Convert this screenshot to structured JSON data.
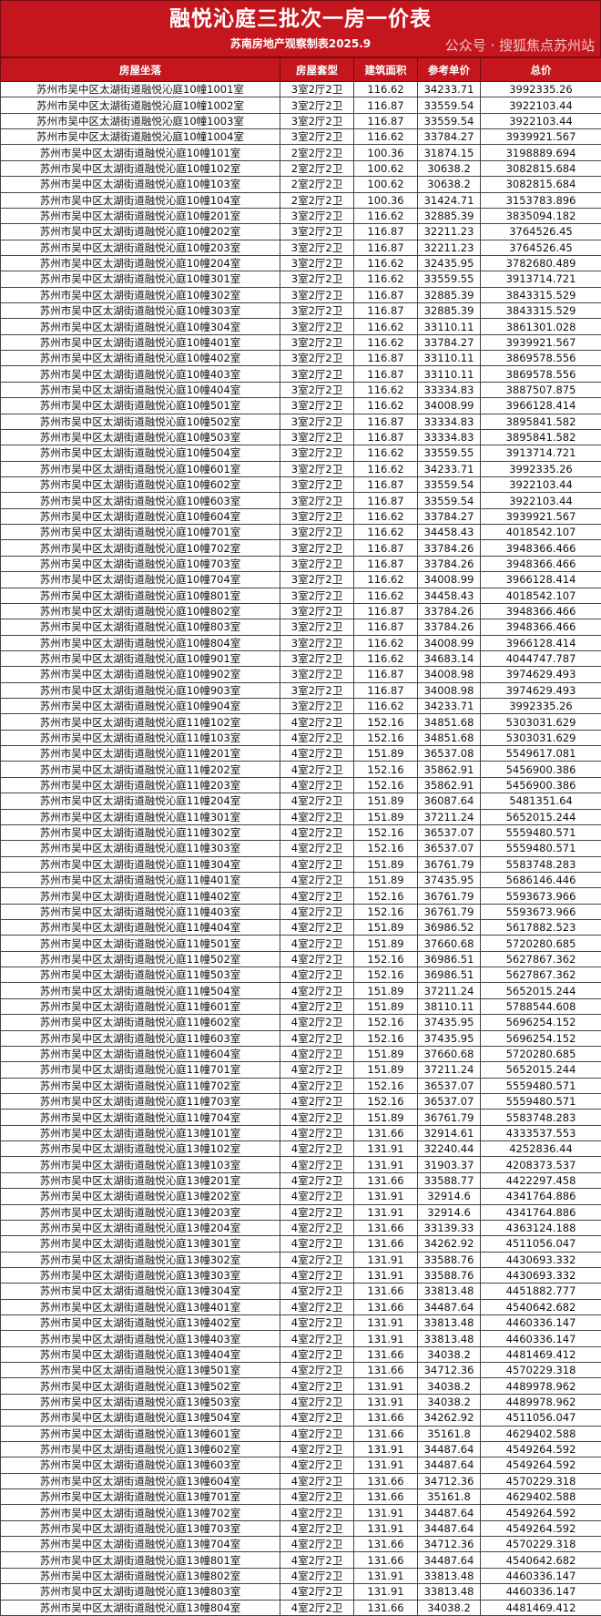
{
  "header": {
    "title": "融悦沁庭三批次一房一价表",
    "subtitle": "苏南房地产观察制表2025.9"
  },
  "colors": {
    "header_red": "#c5161d",
    "header_text": "#ffffff"
  },
  "table": {
    "columns": [
      "房屋坐落",
      "房屋套型",
      "建筑面积",
      "参考单价",
      "总价"
    ],
    "rows": [
      [
        "苏州市吴中区太湖街道融悦沁庭10幢1001室",
        "3室2厅2卫",
        "116.62",
        "34233.71",
        "3992335.26"
      ],
      [
        "苏州市吴中区太湖街道融悦沁庭10幢1002室",
        "3室2厅2卫",
        "116.87",
        "33559.54",
        "3922103.44"
      ],
      [
        "苏州市吴中区太湖街道融悦沁庭10幢1003室",
        "3室2厅2卫",
        "116.87",
        "33559.54",
        "3922103.44"
      ],
      [
        "苏州市吴中区太湖街道融悦沁庭10幢1004室",
        "3室2厅2卫",
        "116.62",
        "33784.27",
        "3939921.567"
      ],
      [
        "苏州市吴中区太湖街道融悦沁庭10幢101室",
        "2室2厅2卫",
        "100.36",
        "31874.15",
        "3198889.694"
      ],
      [
        "苏州市吴中区太湖街道融悦沁庭10幢102室",
        "2室2厅2卫",
        "100.62",
        "30638.2",
        "3082815.684"
      ],
      [
        "苏州市吴中区太湖街道融悦沁庭10幢103室",
        "2室2厅2卫",
        "100.62",
        "30638.2",
        "3082815.684"
      ],
      [
        "苏州市吴中区太湖街道融悦沁庭10幢104室",
        "2室2厅2卫",
        "100.36",
        "31424.71",
        "3153783.896"
      ],
      [
        "苏州市吴中区太湖街道融悦沁庭10幢201室",
        "3室2厅2卫",
        "116.62",
        "32885.39",
        "3835094.182"
      ],
      [
        "苏州市吴中区太湖街道融悦沁庭10幢202室",
        "3室2厅2卫",
        "116.87",
        "32211.23",
        "3764526.45"
      ],
      [
        "苏州市吴中区太湖街道融悦沁庭10幢203室",
        "3室2厅2卫",
        "116.87",
        "32211.23",
        "3764526.45"
      ],
      [
        "苏州市吴中区太湖街道融悦沁庭10幢204室",
        "3室2厅2卫",
        "116.62",
        "32435.95",
        "3782680.489"
      ],
      [
        "苏州市吴中区太湖街道融悦沁庭10幢301室",
        "3室2厅2卫",
        "116.62",
        "33559.55",
        "3913714.721"
      ],
      [
        "苏州市吴中区太湖街道融悦沁庭10幢302室",
        "3室2厅2卫",
        "116.87",
        "32885.39",
        "3843315.529"
      ],
      [
        "苏州市吴中区太湖街道融悦沁庭10幢303室",
        "3室2厅2卫",
        "116.87",
        "32885.39",
        "3843315.529"
      ],
      [
        "苏州市吴中区太湖街道融悦沁庭10幢304室",
        "3室2厅2卫",
        "116.62",
        "33110.11",
        "3861301.028"
      ],
      [
        "苏州市吴中区太湖街道融悦沁庭10幢401室",
        "3室2厅2卫",
        "116.62",
        "33784.27",
        "3939921.567"
      ],
      [
        "苏州市吴中区太湖街道融悦沁庭10幢402室",
        "3室2厅2卫",
        "116.87",
        "33110.11",
        "3869578.556"
      ],
      [
        "苏州市吴中区太湖街道融悦沁庭10幢403室",
        "3室2厅2卫",
        "116.87",
        "33110.11",
        "3869578.556"
      ],
      [
        "苏州市吴中区太湖街道融悦沁庭10幢404室",
        "3室2厅2卫",
        "116.62",
        "33334.83",
        "3887507.875"
      ],
      [
        "苏州市吴中区太湖街道融悦沁庭10幢501室",
        "3室2厅2卫",
        "116.62",
        "34008.99",
        "3966128.414"
      ],
      [
        "苏州市吴中区太湖街道融悦沁庭10幢502室",
        "3室2厅2卫",
        "116.87",
        "33334.83",
        "3895841.582"
      ],
      [
        "苏州市吴中区太湖街道融悦沁庭10幢503室",
        "3室2厅2卫",
        "116.87",
        "33334.83",
        "3895841.582"
      ],
      [
        "苏州市吴中区太湖街道融悦沁庭10幢504室",
        "3室2厅2卫",
        "116.62",
        "33559.55",
        "3913714.721"
      ],
      [
        "苏州市吴中区太湖街道融悦沁庭10幢601室",
        "3室2厅2卫",
        "116.62",
        "34233.71",
        "3992335.26"
      ],
      [
        "苏州市吴中区太湖街道融悦沁庭10幢602室",
        "3室2厅2卫",
        "116.87",
        "33559.54",
        "3922103.44"
      ],
      [
        "苏州市吴中区太湖街道融悦沁庭10幢603室",
        "3室2厅2卫",
        "116.87",
        "33559.54",
        "3922103.44"
      ],
      [
        "苏州市吴中区太湖街道融悦沁庭10幢604室",
        "3室2厅2卫",
        "116.62",
        "33784.27",
        "3939921.567"
      ],
      [
        "苏州市吴中区太湖街道融悦沁庭10幢701室",
        "3室2厅2卫",
        "116.62",
        "34458.43",
        "4018542.107"
      ],
      [
        "苏州市吴中区太湖街道融悦沁庭10幢702室",
        "3室2厅2卫",
        "116.87",
        "33784.26",
        "3948366.466"
      ],
      [
        "苏州市吴中区太湖街道融悦沁庭10幢703室",
        "3室2厅2卫",
        "116.87",
        "33784.26",
        "3948366.466"
      ],
      [
        "苏州市吴中区太湖街道融悦沁庭10幢704室",
        "3室2厅2卫",
        "116.62",
        "34008.99",
        "3966128.414"
      ],
      [
        "苏州市吴中区太湖街道融悦沁庭10幢801室",
        "3室2厅2卫",
        "116.62",
        "34458.43",
        "4018542.107"
      ],
      [
        "苏州市吴中区太湖街道融悦沁庭10幢802室",
        "3室2厅2卫",
        "116.87",
        "33784.26",
        "3948366.466"
      ],
      [
        "苏州市吴中区太湖街道融悦沁庭10幢803室",
        "3室2厅2卫",
        "116.87",
        "33784.26",
        "3948366.466"
      ],
      [
        "苏州市吴中区太湖街道融悦沁庭10幢804室",
        "3室2厅2卫",
        "116.62",
        "34008.99",
        "3966128.414"
      ],
      [
        "苏州市吴中区太湖街道融悦沁庭10幢901室",
        "3室2厅2卫",
        "116.62",
        "34683.14",
        "4044747.787"
      ],
      [
        "苏州市吴中区太湖街道融悦沁庭10幢902室",
        "3室2厅2卫",
        "116.87",
        "34008.98",
        "3974629.493"
      ],
      [
        "苏州市吴中区太湖街道融悦沁庭10幢903室",
        "3室2厅2卫",
        "116.87",
        "34008.98",
        "3974629.493"
      ],
      [
        "苏州市吴中区太湖街道融悦沁庭10幢904室",
        "3室2厅2卫",
        "116.62",
        "34233.71",
        "3992335.26"
      ],
      [
        "苏州市吴中区太湖街道融悦沁庭11幢102室",
        "4室2厅2卫",
        "152.16",
        "34851.68",
        "5303031.629"
      ],
      [
        "苏州市吴中区太湖街道融悦沁庭11幢103室",
        "4室2厅2卫",
        "152.16",
        "34851.68",
        "5303031.629"
      ],
      [
        "苏州市吴中区太湖街道融悦沁庭11幢201室",
        "4室2厅2卫",
        "151.89",
        "36537.08",
        "5549617.081"
      ],
      [
        "苏州市吴中区太湖街道融悦沁庭11幢202室",
        "4室2厅2卫",
        "152.16",
        "35862.91",
        "5456900.386"
      ],
      [
        "苏州市吴中区太湖街道融悦沁庭11幢203室",
        "4室2厅2卫",
        "152.16",
        "35862.91",
        "5456900.386"
      ],
      [
        "苏州市吴中区太湖街道融悦沁庭11幢204室",
        "4室2厅2卫",
        "151.89",
        "36087.64",
        "5481351.64"
      ],
      [
        "苏州市吴中区太湖街道融悦沁庭11幢301室",
        "4室2厅2卫",
        "151.89",
        "37211.24",
        "5652015.244"
      ],
      [
        "苏州市吴中区太湖街道融悦沁庭11幢302室",
        "4室2厅2卫",
        "152.16",
        "36537.07",
        "5559480.571"
      ],
      [
        "苏州市吴中区太湖街道融悦沁庭11幢303室",
        "4室2厅2卫",
        "152.16",
        "36537.07",
        "5559480.571"
      ],
      [
        "苏州市吴中区太湖街道融悦沁庭11幢304室",
        "4室2厅2卫",
        "151.89",
        "36761.79",
        "5583748.283"
      ],
      [
        "苏州市吴中区太湖街道融悦沁庭11幢401室",
        "4室2厅2卫",
        "151.89",
        "37435.95",
        "5686146.446"
      ],
      [
        "苏州市吴中区太湖街道融悦沁庭11幢402室",
        "4室2厅2卫",
        "152.16",
        "36761.79",
        "5593673.966"
      ],
      [
        "苏州市吴中区太湖街道融悦沁庭11幢403室",
        "4室2厅2卫",
        "152.16",
        "36761.79",
        "5593673.966"
      ],
      [
        "苏州市吴中区太湖街道融悦沁庭11幢404室",
        "4室2厅2卫",
        "151.89",
        "36986.52",
        "5617882.523"
      ],
      [
        "苏州市吴中区太湖街道融悦沁庭11幢501室",
        "4室2厅2卫",
        "151.89",
        "37660.68",
        "5720280.685"
      ],
      [
        "苏州市吴中区太湖街道融悦沁庭11幢502室",
        "4室2厅2卫",
        "152.16",
        "36986.51",
        "5627867.362"
      ],
      [
        "苏州市吴中区太湖街道融悦沁庭11幢503室",
        "4室2厅2卫",
        "152.16",
        "36986.51",
        "5627867.362"
      ],
      [
        "苏州市吴中区太湖街道融悦沁庭11幢504室",
        "4室2厅2卫",
        "151.89",
        "37211.24",
        "5652015.244"
      ],
      [
        "苏州市吴中区太湖街道融悦沁庭11幢601室",
        "4室2厅2卫",
        "151.89",
        "38110.11",
        "5788544.608"
      ],
      [
        "苏州市吴中区太湖街道融悦沁庭11幢602室",
        "4室2厅2卫",
        "152.16",
        "37435.95",
        "5696254.152"
      ],
      [
        "苏州市吴中区太湖街道融悦沁庭11幢603室",
        "4室2厅2卫",
        "152.16",
        "37435.95",
        "5696254.152"
      ],
      [
        "苏州市吴中区太湖街道融悦沁庭11幢604室",
        "4室2厅2卫",
        "151.89",
        "37660.68",
        "5720280.685"
      ],
      [
        "苏州市吴中区太湖街道融悦沁庭11幢701室",
        "4室2厅2卫",
        "151.89",
        "37211.24",
        "5652015.244"
      ],
      [
        "苏州市吴中区太湖街道融悦沁庭11幢702室",
        "4室2厅2卫",
        "152.16",
        "36537.07",
        "5559480.571"
      ],
      [
        "苏州市吴中区太湖街道融悦沁庭11幢703室",
        "4室2厅2卫",
        "152.16",
        "36537.07",
        "5559480.571"
      ],
      [
        "苏州市吴中区太湖街道融悦沁庭11幢704室",
        "4室2厅2卫",
        "151.89",
        "36761.79",
        "5583748.283"
      ],
      [
        "苏州市吴中区太湖街道融悦沁庭13幢101室",
        "4室2厅2卫",
        "131.66",
        "32914.61",
        "4333537.553"
      ],
      [
        "苏州市吴中区太湖街道融悦沁庭13幢102室",
        "4室2厅2卫",
        "131.91",
        "32240.44",
        "4252836.44"
      ],
      [
        "苏州市吴中区太湖街道融悦沁庭13幢103室",
        "4室2厅2卫",
        "131.91",
        "31903.37",
        "4208373.537"
      ],
      [
        "苏州市吴中区太湖街道融悦沁庭13幢201室",
        "4室2厅2卫",
        "131.66",
        "33588.77",
        "4422297.458"
      ],
      [
        "苏州市吴中区太湖街道融悦沁庭13幢202室",
        "4室2厅2卫",
        "131.91",
        "32914.6",
        "4341764.886"
      ],
      [
        "苏州市吴中区太湖街道融悦沁庭13幢203室",
        "4室2厅2卫",
        "131.91",
        "32914.6",
        "4341764.886"
      ],
      [
        "苏州市吴中区太湖街道融悦沁庭13幢204室",
        "4室2厅2卫",
        "131.66",
        "33139.33",
        "4363124.188"
      ],
      [
        "苏州市吴中区太湖街道融悦沁庭13幢301室",
        "4室2厅2卫",
        "131.66",
        "34262.92",
        "4511056.047"
      ],
      [
        "苏州市吴中区太湖街道融悦沁庭13幢302室",
        "4室2厅2卫",
        "131.91",
        "33588.76",
        "4430693.332"
      ],
      [
        "苏州市吴中区太湖街道融悦沁庭13幢303室",
        "4室2厅2卫",
        "131.91",
        "33588.76",
        "4430693.332"
      ],
      [
        "苏州市吴中区太湖街道融悦沁庭13幢304室",
        "4室2厅2卫",
        "131.66",
        "33813.48",
        "4451882.777"
      ],
      [
        "苏州市吴中区太湖街道融悦沁庭13幢401室",
        "4室2厅2卫",
        "131.66",
        "34487.64",
        "4540642.682"
      ],
      [
        "苏州市吴中区太湖街道融悦沁庭13幢402室",
        "4室2厅2卫",
        "131.91",
        "33813.48",
        "4460336.147"
      ],
      [
        "苏州市吴中区太湖街道融悦沁庭13幢403室",
        "4室2厅2卫",
        "131.91",
        "33813.48",
        "4460336.147"
      ],
      [
        "苏州市吴中区太湖街道融悦沁庭13幢404室",
        "4室2厅2卫",
        "131.66",
        "34038.2",
        "4481469.412"
      ],
      [
        "苏州市吴中区太湖街道融悦沁庭13幢501室",
        "4室2厅2卫",
        "131.66",
        "34712.36",
        "4570229.318"
      ],
      [
        "苏州市吴中区太湖街道融悦沁庭13幢502室",
        "4室2厅2卫",
        "131.91",
        "34038.2",
        "4489978.962"
      ],
      [
        "苏州市吴中区太湖街道融悦沁庭13幢503室",
        "4室2厅2卫",
        "131.91",
        "34038.2",
        "4489978.962"
      ],
      [
        "苏州市吴中区太湖街道融悦沁庭13幢504室",
        "4室2厅2卫",
        "131.66",
        "34262.92",
        "4511056.047"
      ],
      [
        "苏州市吴中区太湖街道融悦沁庭13幢601室",
        "4室2厅2卫",
        "131.66",
        "35161.8",
        "4629402.588"
      ],
      [
        "苏州市吴中区太湖街道融悦沁庭13幢602室",
        "4室2厅2卫",
        "131.91",
        "34487.64",
        "4549264.592"
      ],
      [
        "苏州市吴中区太湖街道融悦沁庭13幢603室",
        "4室2厅2卫",
        "131.91",
        "34487.64",
        "4549264.592"
      ],
      [
        "苏州市吴中区太湖街道融悦沁庭13幢604室",
        "4室2厅2卫",
        "131.66",
        "34712.36",
        "4570229.318"
      ],
      [
        "苏州市吴中区太湖街道融悦沁庭13幢701室",
        "4室2厅2卫",
        "131.66",
        "35161.8",
        "4629402.588"
      ],
      [
        "苏州市吴中区太湖街道融悦沁庭13幢702室",
        "4室2厅2卫",
        "131.91",
        "34487.64",
        "4549264.592"
      ],
      [
        "苏州市吴中区太湖街道融悦沁庭13幢703室",
        "4室2厅2卫",
        "131.91",
        "34487.64",
        "4549264.592"
      ],
      [
        "苏州市吴中区太湖街道融悦沁庭13幢704室",
        "4室2厅2卫",
        "131.66",
        "34712.36",
        "4570229.318"
      ],
      [
        "苏州市吴中区太湖街道融悦沁庭13幢801室",
        "4室2厅2卫",
        "131.66",
        "34487.64",
        "4540642.682"
      ],
      [
        "苏州市吴中区太湖街道融悦沁庭13幢802室",
        "4室2厅2卫",
        "131.91",
        "33813.48",
        "4460336.147"
      ],
      [
        "苏州市吴中区太湖街道融悦沁庭13幢803室",
        "4室2厅2卫",
        "131.91",
        "33813.48",
        "4460336.147"
      ],
      [
        "苏州市吴中区太湖街道融悦沁庭13幢804室",
        "4室2厅2卫",
        "131.66",
        "34038.2",
        "4481469.412"
      ]
    ]
  },
  "watermark": "公众号 · 搜狐焦点苏州站"
}
